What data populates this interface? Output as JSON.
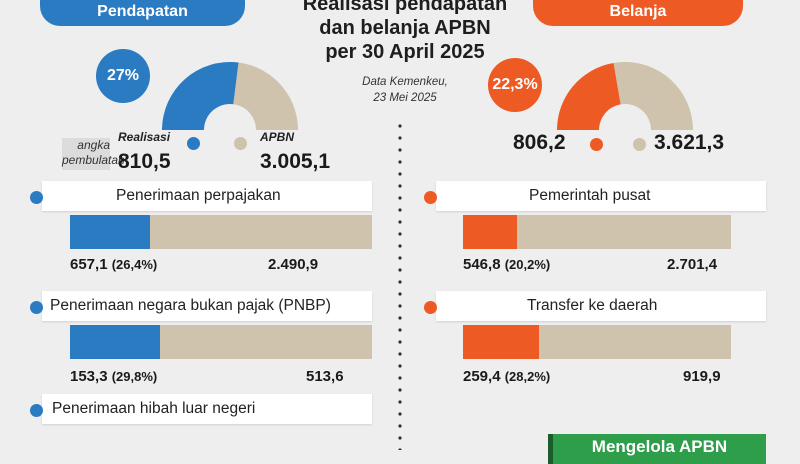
{
  "header": {
    "title_line1": "Realisasi pendapatan",
    "title_line2": "dan belanja APBN",
    "title_line3": "per 30 April 2025",
    "source_line1": "Data Kemenkeu,",
    "source_line2": "23 Mei 2025"
  },
  "legend": {
    "rounding_note_line1": "angka",
    "rounding_note_line2": "pembulatan",
    "realisasi_label": "Realisasi",
    "apbn_label": "APBN"
  },
  "colors": {
    "pendapatan": "#2b7bc2",
    "belanja": "#ee5a24",
    "apbn": "#cfc3ad",
    "green": "#2e9e4b"
  },
  "footer": {
    "green_label": "Mengelola APBN"
  },
  "chart_data": [
    {
      "type": "pie",
      "title": "Pendapatan",
      "realisasi_total": "810,5",
      "apbn_total": "3.005,1",
      "realisasi_pct": 27,
      "pct_label": "27%",
      "categories": [
        {
          "name": "Penerimaan perpajakan",
          "realisasi": 657.1,
          "realisasi_label": "657,1",
          "pct_label": "(26,4%)",
          "apbn": 2490.9,
          "apbn_label": "2.490,9",
          "pct": 26.4
        },
        {
          "name": "Penerimaan negara bukan pajak (PNBP)",
          "realisasi": 153.3,
          "realisasi_label": "153,3",
          "pct_label": "(29,8%)",
          "apbn": 513.6,
          "apbn_label": "513,6",
          "pct": 29.8
        },
        {
          "name": "Penerimaan hibah luar negeri"
        }
      ]
    },
    {
      "type": "pie",
      "title": "Belanja",
      "realisasi_total": "806,2",
      "apbn_total": "3.621,3",
      "realisasi_pct": 22.3,
      "pct_label": "22,3%",
      "categories": [
        {
          "name": "Pemerintah pusat",
          "realisasi": 546.8,
          "realisasi_label": "546,8",
          "pct_label": "(20,2%)",
          "apbn": 2701.4,
          "apbn_label": "2.701,4",
          "pct": 20.2
        },
        {
          "name": "Transfer ke daerah",
          "realisasi": 259.4,
          "realisasi_label": "259,4",
          "pct_label": "(28,2%)",
          "apbn": 919.9,
          "apbn_label": "919,9",
          "pct": 28.2
        }
      ]
    }
  ]
}
